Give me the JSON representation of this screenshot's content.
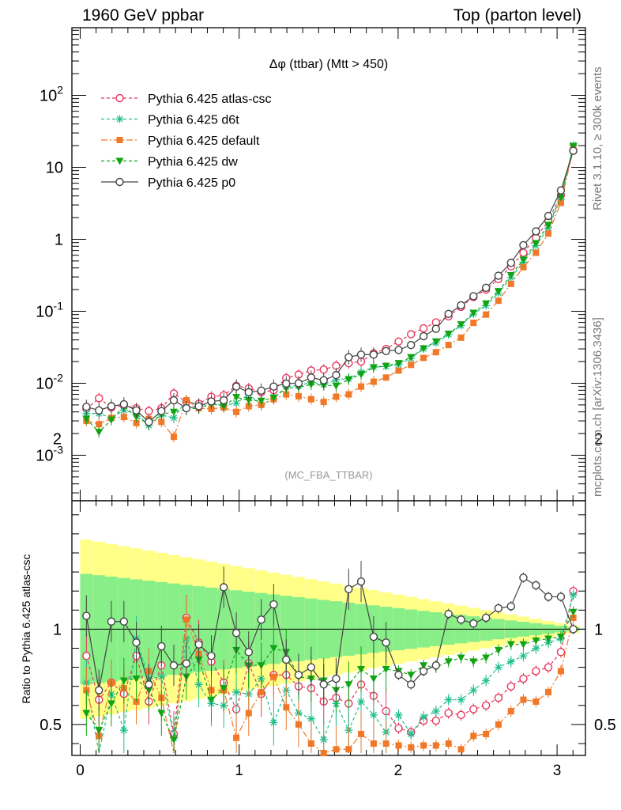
{
  "header": {
    "left": "1960 GeV ppbar",
    "right": "Top (parton level)"
  },
  "side_labels": {
    "rivet": "Rivet 3.1.10, ≥ 300k events",
    "source": "mcplots.cern.ch [arXiv:1306.3436]"
  },
  "chart_data": {
    "type": "line",
    "title": "Δφ (ttbar) (Mtt > 450)",
    "analysis_tag": "(MC_FBA_TTBAR)",
    "ylabel_ratio": "Ratio to Pythia 6.425 atlas-csc",
    "yscale": "log",
    "xlim": [
      -0.05,
      3.19
    ],
    "ylim": [
      0.00025,
      1000
    ],
    "ratio_ylim": [
      0.35,
      2.35
    ],
    "x_ticks": [
      "0",
      "1",
      "2",
      "3"
    ],
    "y_ticks": [
      "10^-3",
      "10^-2",
      "10^-1",
      "1",
      "10",
      "10^2"
    ],
    "ratio_ticks": [
      "0.5",
      "1",
      "2"
    ],
    "legend_position": "top-left",
    "colors": {
      "atlas-csc": "#e8365e",
      "d6t": "#1fbf8f",
      "default": "#f07828",
      "dw": "#12a312",
      "p0": "#444444",
      "band_outer": "#ffff88",
      "band_inner": "#88ee88"
    },
    "x": [
      0.039,
      0.118,
      0.196,
      0.275,
      0.353,
      0.432,
      0.511,
      0.589,
      0.668,
      0.746,
      0.825,
      0.903,
      0.982,
      1.06,
      1.139,
      1.217,
      1.296,
      1.374,
      1.453,
      1.532,
      1.61,
      1.689,
      1.767,
      1.846,
      1.924,
      2.003,
      2.081,
      2.16,
      2.238,
      2.317,
      2.396,
      2.474,
      2.553,
      2.631,
      2.71,
      2.788,
      2.867,
      2.945,
      3.024,
      3.102
    ],
    "series": [
      {
        "name": "Pythia 6.425 atlas-csc",
        "values": [
          0.0044,
          0.0062,
          0.0046,
          0.0049,
          0.0045,
          0.0041,
          0.0045,
          0.0072,
          0.0055,
          0.0052,
          0.0065,
          0.0068,
          0.0092,
          0.0085,
          0.0075,
          0.008,
          0.0118,
          0.0132,
          0.015,
          0.0155,
          0.0175,
          0.019,
          0.02,
          0.026,
          0.03,
          0.038,
          0.048,
          0.058,
          0.07,
          0.085,
          0.115,
          0.158,
          0.2,
          0.28,
          0.42,
          0.65,
          1.05,
          1.8,
          4.1,
          17.0
        ],
        "ratio": [
          0.86,
          0.63,
          0.72,
          0.66,
          0.86,
          0.62,
          0.81,
          0.45,
          1.06,
          0.93,
          0.83,
          0.72,
          0.58,
          0.82,
          0.66,
          0.76,
          0.76,
          0.7,
          0.69,
          0.62,
          0.64,
          0.61,
          0.71,
          0.65,
          0.57,
          0.48,
          0.46,
          0.52,
          0.52,
          0.56,
          0.55,
          0.58,
          0.6,
          0.64,
          0.7,
          0.74,
          0.78,
          0.8,
          0.88,
          1.2
        ]
      },
      {
        "name": "Pythia 6.425 d6t",
        "values": [
          0.0038,
          0.0038,
          0.0033,
          0.0042,
          0.0038,
          0.0026,
          0.0036,
          0.0033,
          0.0058,
          0.0048,
          0.0054,
          0.0049,
          0.0053,
          0.007,
          0.005,
          0.0061,
          0.009,
          0.0092,
          0.0104,
          0.0096,
          0.0112,
          0.0116,
          0.0142,
          0.0168,
          0.0171,
          0.0182,
          0.0221,
          0.0302,
          0.0364,
          0.0476,
          0.0633,
          0.0916,
          0.12,
          0.179,
          0.294,
          0.481,
          0.819,
          1.44,
          3.61,
          20.4
        ],
        "ratio": [
          0.72,
          0.26,
          0.66,
          0.47,
          0.95,
          0.74,
          0.75,
          0.43,
          0.95,
          0.71,
          0.61,
          0.6,
          0.67,
          0.66,
          0.74,
          0.51,
          0.68,
          0.56,
          0.53,
          0.42,
          0.61,
          0.47,
          0.62,
          0.55,
          0.46,
          0.55,
          0.45,
          0.54,
          0.57,
          0.63,
          0.63,
          0.68,
          0.73,
          0.8,
          0.83,
          0.86,
          0.9,
          0.93,
          0.95,
          1.18
        ]
      },
      {
        "name": "Pythia 6.425 default",
        "values": [
          0.003,
          0.0027,
          0.0033,
          0.0034,
          0.0028,
          0.0032,
          0.0029,
          0.0018,
          0.0058,
          0.0045,
          0.0044,
          0.0046,
          0.004,
          0.0048,
          0.005,
          0.006,
          0.007,
          0.0066,
          0.006,
          0.0055,
          0.0065,
          0.007,
          0.009,
          0.0105,
          0.012,
          0.015,
          0.018,
          0.0225,
          0.027,
          0.034,
          0.043,
          0.069,
          0.09,
          0.14,
          0.24,
          0.41,
          0.65,
          1.2,
          3.2,
          18.0
        ],
        "ratio": [
          0.68,
          0.44,
          0.72,
          0.69,
          0.62,
          0.78,
          0.64,
          0.25,
          1.05,
          0.87,
          0.68,
          0.68,
          0.43,
          0.56,
          0.67,
          0.75,
          0.59,
          0.5,
          0.4,
          0.35,
          0.37,
          0.37,
          0.45,
          0.4,
          0.4,
          0.39,
          0.38,
          0.39,
          0.39,
          0.4,
          0.37,
          0.44,
          0.45,
          0.5,
          0.57,
          0.63,
          0.62,
          0.67,
          0.78,
          1.06
        ]
      },
      {
        "name": "Pythia 6.425 dw",
        "values": [
          0.0032,
          0.0021,
          0.0031,
          0.0048,
          0.0034,
          0.0027,
          0.0037,
          0.004,
          0.0044,
          0.0045,
          0.0052,
          0.0048,
          0.0064,
          0.0058,
          0.0057,
          0.0063,
          0.0085,
          0.0088,
          0.0096,
          0.0094,
          0.0092,
          0.0113,
          0.0133,
          0.0166,
          0.0174,
          0.019,
          0.023,
          0.0304,
          0.038,
          0.0486,
          0.0656,
          0.095,
          0.128,
          0.19,
          0.316,
          0.52,
          0.88,
          1.58,
          3.81,
          19.7
        ],
        "ratio": [
          0.56,
          0.47,
          0.61,
          0.73,
          0.74,
          0.68,
          0.56,
          0.42,
          0.75,
          0.84,
          0.63,
          0.69,
          0.89,
          0.81,
          0.81,
          0.9,
          0.88,
          0.75,
          0.74,
          0.73,
          0.68,
          0.71,
          0.79,
          0.74,
          0.79,
          0.78,
          0.76,
          0.81,
          0.8,
          0.83,
          0.85,
          0.83,
          0.85,
          0.89,
          0.92,
          0.92,
          0.94,
          0.95,
          0.96,
          1.09
        ]
      },
      {
        "name": "Pythia 6.425 p0",
        "values": [
          0.0047,
          0.0042,
          0.0048,
          0.0051,
          0.0042,
          0.0029,
          0.0041,
          0.0058,
          0.0045,
          0.0048,
          0.0056,
          0.0058,
          0.009,
          0.0075,
          0.0079,
          0.009,
          0.0099,
          0.01,
          0.012,
          0.011,
          0.013,
          0.023,
          0.025,
          0.025,
          0.028,
          0.029,
          0.034,
          0.045,
          0.057,
          0.092,
          0.121,
          0.162,
          0.212,
          0.312,
          0.471,
          0.828,
          1.29,
          2.11,
          4.78,
          17.0
        ],
        "ratio": [
          1.07,
          0.68,
          1.04,
          1.04,
          0.93,
          0.71,
          0.91,
          0.81,
          0.82,
          0.92,
          0.86,
          1.22,
          0.98,
          0.88,
          1.05,
          1.13,
          0.84,
          0.76,
          0.8,
          0.71,
          0.74,
          1.21,
          1.25,
          0.96,
          0.93,
          0.76,
          0.71,
          0.78,
          0.81,
          1.08,
          1.05,
          1.03,
          1.06,
          1.11,
          1.12,
          1.27,
          1.23,
          1.17,
          1.17,
          1.0
        ]
      }
    ]
  }
}
